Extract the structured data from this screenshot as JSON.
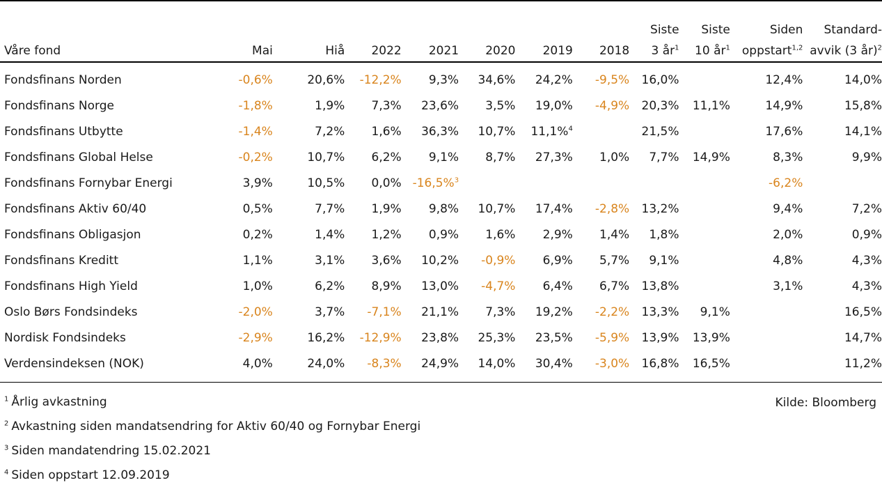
{
  "table": {
    "headers": [
      {
        "label": "Våre fond",
        "label2": "",
        "sup": ""
      },
      {
        "label": "Mai",
        "label2": "",
        "sup": ""
      },
      {
        "label": "Hiå",
        "label2": "",
        "sup": ""
      },
      {
        "label": "2022",
        "label2": "",
        "sup": ""
      },
      {
        "label": "2021",
        "label2": "",
        "sup": ""
      },
      {
        "label": "2020",
        "label2": "",
        "sup": ""
      },
      {
        "label": "2019",
        "label2": "",
        "sup": ""
      },
      {
        "label": "2018",
        "label2": "",
        "sup": ""
      },
      {
        "label": "Siste",
        "label2": "3 år",
        "sup": "1"
      },
      {
        "label": "Siste",
        "label2": "10 år",
        "sup": "1"
      },
      {
        "label": "Siden",
        "label2": "oppstart",
        "sup": "1,2"
      },
      {
        "label": "Standard-",
        "label2": "avvik (3 år)",
        "sup": "2"
      }
    ],
    "rows": [
      {
        "name": "Fondsfinans Norden",
        "cells": [
          {
            "v": "-0,6%",
            "neg": true
          },
          {
            "v": "20,6%"
          },
          {
            "v": "-12,2%",
            "neg": true
          },
          {
            "v": "9,3%"
          },
          {
            "v": "34,6%"
          },
          {
            "v": "24,2%"
          },
          {
            "v": "-9,5%",
            "neg": true
          },
          {
            "v": "16,0%"
          },
          {
            "v": ""
          },
          {
            "v": "12,4%"
          },
          {
            "v": "14,0%"
          }
        ]
      },
      {
        "name": "Fondsfinans Norge",
        "cells": [
          {
            "v": "-1,8%",
            "neg": true
          },
          {
            "v": "1,9%"
          },
          {
            "v": "7,3%"
          },
          {
            "v": "23,6%"
          },
          {
            "v": "3,5%"
          },
          {
            "v": "19,0%"
          },
          {
            "v": "-4,9%",
            "neg": true
          },
          {
            "v": "20,3%"
          },
          {
            "v": "11,1%"
          },
          {
            "v": "14,9%"
          },
          {
            "v": "15,8%"
          }
        ]
      },
      {
        "name": "Fondsfinans Utbytte",
        "cells": [
          {
            "v": "-1,4%",
            "neg": true
          },
          {
            "v": "7,2%"
          },
          {
            "v": "1,6%"
          },
          {
            "v": "36,3%"
          },
          {
            "v": "10,7%"
          },
          {
            "v": "11,1%",
            "sup": "4"
          },
          {
            "v": ""
          },
          {
            "v": "21,5%"
          },
          {
            "v": ""
          },
          {
            "v": "17,6%"
          },
          {
            "v": "14,1%"
          }
        ]
      },
      {
        "name": "Fondsfinans Global Helse",
        "cells": [
          {
            "v": "-0,2%",
            "neg": true
          },
          {
            "v": "10,7%"
          },
          {
            "v": "6,2%"
          },
          {
            "v": "9,1%"
          },
          {
            "v": "8,7%"
          },
          {
            "v": "27,3%"
          },
          {
            "v": "1,0%"
          },
          {
            "v": "7,7%"
          },
          {
            "v": "14,9%"
          },
          {
            "v": "8,3%"
          },
          {
            "v": "9,9%"
          }
        ]
      },
      {
        "name": "Fondsfinans Fornybar Energi",
        "cells": [
          {
            "v": "3,9%"
          },
          {
            "v": "10,5%"
          },
          {
            "v": "0,0%"
          },
          {
            "v": "-16,5%",
            "neg": true,
            "sup": "3"
          },
          {
            "v": ""
          },
          {
            "v": ""
          },
          {
            "v": ""
          },
          {
            "v": ""
          },
          {
            "v": ""
          },
          {
            "v": "-6,2%",
            "neg": true
          },
          {
            "v": ""
          }
        ]
      },
      {
        "name": "Fondsfinans Aktiv 60/40",
        "cells": [
          {
            "v": "0,5%"
          },
          {
            "v": "7,7%"
          },
          {
            "v": "1,9%"
          },
          {
            "v": "9,8%"
          },
          {
            "v": "10,7%"
          },
          {
            "v": "17,4%"
          },
          {
            "v": "-2,8%",
            "neg": true
          },
          {
            "v": "13,2%"
          },
          {
            "v": ""
          },
          {
            "v": "9,4%"
          },
          {
            "v": "7,2%"
          }
        ]
      },
      {
        "name": "Fondsfinans Obligasjon",
        "cells": [
          {
            "v": "0,2%"
          },
          {
            "v": "1,4%"
          },
          {
            "v": "1,2%"
          },
          {
            "v": "0,9%"
          },
          {
            "v": "1,6%"
          },
          {
            "v": "2,9%"
          },
          {
            "v": "1,4%"
          },
          {
            "v": "1,8%"
          },
          {
            "v": ""
          },
          {
            "v": "2,0%"
          },
          {
            "v": "0,9%"
          }
        ]
      },
      {
        "name": "Fondsfinans Kreditt",
        "cells": [
          {
            "v": "1,1%"
          },
          {
            "v": "3,1%"
          },
          {
            "v": "3,6%"
          },
          {
            "v": "10,2%"
          },
          {
            "v": "-0,9%",
            "neg": true
          },
          {
            "v": "6,9%"
          },
          {
            "v": "5,7%"
          },
          {
            "v": "9,1%"
          },
          {
            "v": ""
          },
          {
            "v": "4,8%"
          },
          {
            "v": "4,3%"
          }
        ]
      },
      {
        "name": "Fondsfinans High Yield",
        "cells": [
          {
            "v": "1,0%"
          },
          {
            "v": "6,2%"
          },
          {
            "v": "8,9%"
          },
          {
            "v": "13,0%"
          },
          {
            "v": "-4,7%",
            "neg": true
          },
          {
            "v": "6,4%"
          },
          {
            "v": "6,7%"
          },
          {
            "v": "13,8%"
          },
          {
            "v": ""
          },
          {
            "v": "3,1%"
          },
          {
            "v": "4,3%"
          }
        ]
      },
      {
        "name": "Oslo Børs Fondsindeks",
        "cells": [
          {
            "v": "-2,0%",
            "neg": true
          },
          {
            "v": "3,7%"
          },
          {
            "v": "-7,1%",
            "neg": true
          },
          {
            "v": "21,1%"
          },
          {
            "v": "7,3%"
          },
          {
            "v": "19,2%"
          },
          {
            "v": "-2,2%",
            "neg": true
          },
          {
            "v": "13,3%"
          },
          {
            "v": "9,1%"
          },
          {
            "v": ""
          },
          {
            "v": "16,5%"
          }
        ]
      },
      {
        "name": "Nordisk Fondsindeks",
        "cells": [
          {
            "v": "-2,9%",
            "neg": true
          },
          {
            "v": "16,2%"
          },
          {
            "v": "-12,9%",
            "neg": true
          },
          {
            "v": "23,8%"
          },
          {
            "v": "25,3%"
          },
          {
            "v": "23,5%"
          },
          {
            "v": "-5,9%",
            "neg": true
          },
          {
            "v": "13,9%"
          },
          {
            "v": "13,9%"
          },
          {
            "v": ""
          },
          {
            "v": "14,7%"
          }
        ]
      },
      {
        "name": "Verdensindeksen (NOK)",
        "cells": [
          {
            "v": "4,0%"
          },
          {
            "v": "24,0%"
          },
          {
            "v": "-8,3%",
            "neg": true
          },
          {
            "v": "24,9%"
          },
          {
            "v": "14,0%"
          },
          {
            "v": "30,4%"
          },
          {
            "v": "-3,0%",
            "neg": true
          },
          {
            "v": "16,8%"
          },
          {
            "v": "16,5%"
          },
          {
            "v": ""
          },
          {
            "v": "11,2%"
          }
        ]
      }
    ]
  },
  "colors": {
    "negative": "#d9851e",
    "text": "#1a1a1a"
  },
  "footnotes": [
    {
      "num": "1",
      "text": "Årlig avkastning"
    },
    {
      "num": "2",
      "text": "Avkastning siden mandatsendring for Aktiv 60/40 og Fornybar Energi"
    },
    {
      "num": "3",
      "text": "Siden mandatendring 15.02.2021"
    },
    {
      "num": "4",
      "text": "Siden oppstart 12.09.2019"
    }
  ],
  "source": "Kilde: Bloomberg"
}
